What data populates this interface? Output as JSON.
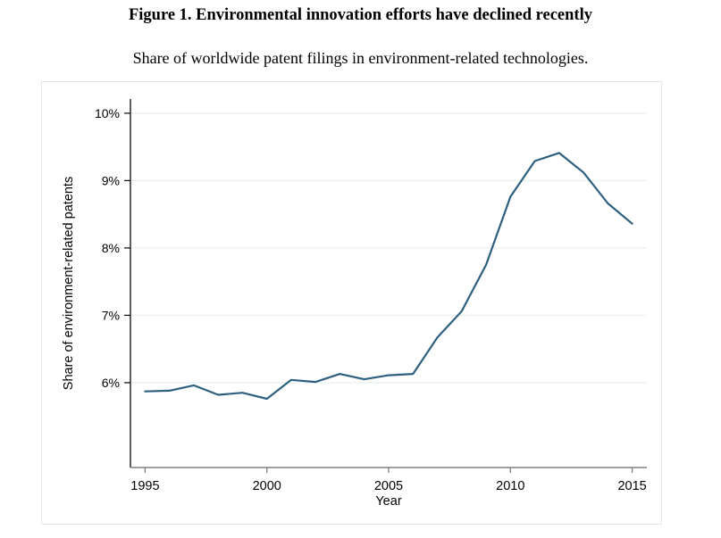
{
  "title": "Figure 1. Environmental innovation efforts have declined recently",
  "subtitle": "Share of worldwide patent filings in environment-related technologies.",
  "colors": {
    "line": "#2d607f",
    "grid": "#e9f2f1",
    "y_axis": "#1a1a1a",
    "x_axis": "#808080",
    "y_tick": "#1a1a1a",
    "x_tick": "#808080",
    "text": "#000000",
    "frame": "#dfe9ec",
    "background": "#ffffff"
  },
  "chart_data": {
    "type": "line",
    "title": "",
    "xlabel": "Year",
    "ylabel": "Share of environment-related patents",
    "x": [
      1995,
      1996,
      1997,
      1998,
      1999,
      2000,
      2001,
      2002,
      2003,
      2004,
      2005,
      2006,
      2007,
      2008,
      2009,
      2010,
      2011,
      2012,
      2013,
      2014,
      2015
    ],
    "values": [
      5.87,
      5.88,
      5.96,
      5.82,
      5.85,
      5.76,
      6.04,
      6.01,
      6.13,
      6.05,
      6.11,
      6.13,
      6.67,
      7.06,
      7.75,
      8.76,
      9.29,
      9.41,
      9.12,
      8.66,
      8.36
    ],
    "series_name": "Share of environment-related patents",
    "x_ticks": [
      1995,
      2000,
      2005,
      2010,
      2015
    ],
    "x_tick_labels": [
      "1995",
      "2000",
      "2005",
      "2010",
      "2015"
    ],
    "y_ticks": [
      6,
      7,
      8,
      9,
      10
    ],
    "y_tick_labels": [
      "6%",
      "7%",
      "8%",
      "9%",
      "10%"
    ],
    "xlim": [
      1994.4,
      2015.6
    ],
    "ylim": [
      4.74,
      10.21
    ],
    "grid": "horizontal",
    "legend": "none",
    "line_color": "#2d607f"
  }
}
